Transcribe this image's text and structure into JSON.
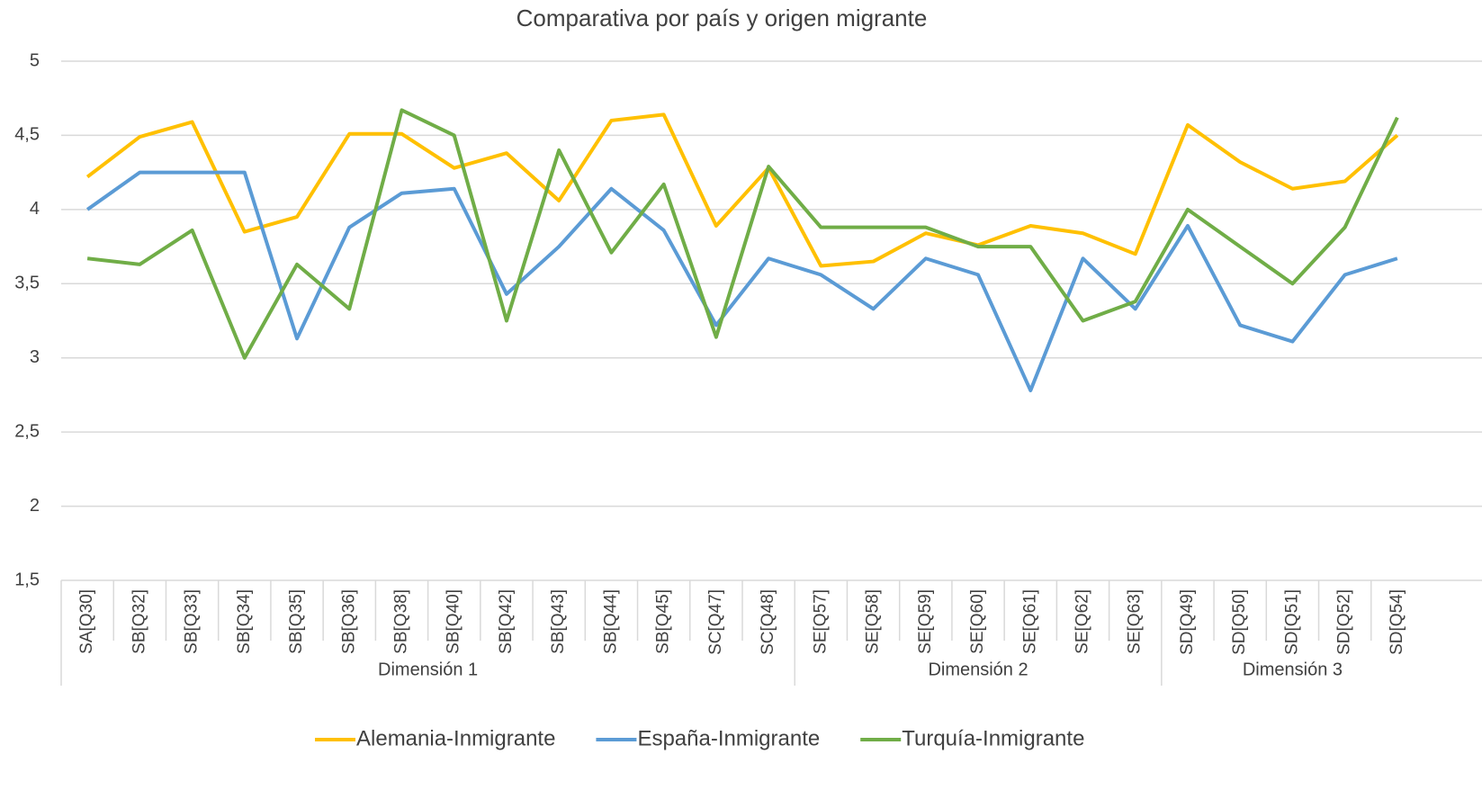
{
  "chart_data": {
    "type": "line",
    "title": "Comparativa por país y origen  migrante",
    "groups": [
      {
        "name": "Dimensión 1",
        "categories": [
          "SA[Q30]",
          "SB[Q32]",
          "SB[Q33]",
          "SB[Q34]",
          "SB[Q35]",
          "SB[Q36]",
          "SB[Q38]",
          "SB[Q40]",
          "SB[Q42]",
          "SB[Q43]",
          "SB[Q44]",
          "SB[Q45]",
          "SC[Q47]",
          "SC[Q48]"
        ]
      },
      {
        "name": "Dimensión 2",
        "categories": [
          "SE[Q57]",
          "SE[Q58]",
          "SE[Q59]",
          "SE[Q60]",
          "SE[Q61]",
          "SE[Q62]",
          "SE[Q63]"
        ]
      },
      {
        "name": "Dimensión 3",
        "categories": [
          "SD[Q49]",
          "SD[Q50]",
          "SD[Q51]",
          "SD[Q52]",
          "SD[Q54]"
        ]
      }
    ],
    "series": [
      {
        "name": "Alemania-Inmigrante",
        "color": "#ffc000",
        "values": [
          4.22,
          4.49,
          4.59,
          3.85,
          3.95,
          4.51,
          4.51,
          4.28,
          4.38,
          4.06,
          4.6,
          4.64,
          3.89,
          4.28,
          3.62,
          3.65,
          3.84,
          3.76,
          3.89,
          3.84,
          3.7,
          4.57,
          4.32,
          4.14,
          4.19,
          4.5
        ]
      },
      {
        "name": "España-Inmigrante",
        "color": "#5b9bd5",
        "values": [
          4.0,
          4.25,
          4.25,
          4.25,
          3.13,
          3.88,
          4.11,
          4.14,
          3.43,
          3.75,
          4.14,
          3.86,
          3.22,
          3.67,
          3.56,
          3.33,
          3.67,
          3.56,
          2.78,
          3.67,
          3.33,
          3.89,
          3.22,
          3.11,
          3.56,
          3.67
        ]
      },
      {
        "name": "Turquía-Inmigrante",
        "color": "#70ad47",
        "values": [
          3.67,
          3.63,
          3.86,
          3.0,
          3.63,
          3.33,
          4.67,
          4.5,
          3.25,
          4.4,
          3.71,
          4.17,
          3.14,
          4.29,
          3.88,
          3.88,
          3.88,
          3.75,
          3.75,
          3.25,
          3.38,
          4.0,
          3.75,
          3.5,
          3.88,
          4.62
        ]
      }
    ],
    "ylim": [
      1.5,
      5
    ],
    "yticks": [
      {
        "value": 1.5,
        "label": "1,5"
      },
      2,
      {
        "value": 2.5,
        "label": "2,5"
      },
      3,
      {
        "value": 3.5,
        "label": "3,5"
      },
      4,
      {
        "value": 4.5,
        "label": "4,5"
      },
      5
    ],
    "grid": true,
    "legend": "bottom"
  }
}
